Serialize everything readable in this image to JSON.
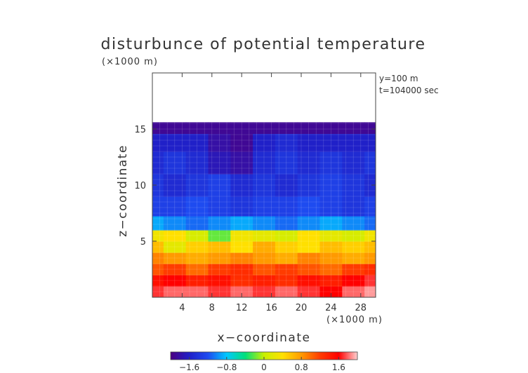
{
  "chart_data": {
    "type": "heatmap",
    "title": "disturbunce of potential temperature",
    "xlabel": "x−coordinate",
    "ylabel": "z−coordinate",
    "x_unit": "(×1000 m)",
    "y_unit": "(×1000 m)",
    "annotations": [
      "y=100 m",
      "t=104000 sec"
    ],
    "xlim": [
      0,
      30
    ],
    "ylim": [
      0,
      20
    ],
    "x_ticks": [
      4,
      8,
      12,
      16,
      20,
      24,
      28
    ],
    "x_tick_labels": [
      "4",
      "8",
      "12",
      "16",
      "20",
      "24",
      "28"
    ],
    "y_ticks": [
      5,
      10,
      15
    ],
    "y_tick_labels": [
      "5",
      "10",
      "15"
    ],
    "colorbar": {
      "range": [
        -2.0,
        2.0
      ],
      "ticks": [
        -1.6,
        -0.8,
        0,
        0.8,
        1.6
      ],
      "tick_labels": [
        "−1.6",
        "−0.8",
        "0",
        "0.8",
        "1.6"
      ],
      "colormap": [
        "#4b0082",
        "#2020c8",
        "#1e4bf0",
        "#00c8ff",
        "#00e07a",
        "#c8f000",
        "#ffe000",
        "#ff9a00",
        "#ff3c00",
        "#ff0000",
        "#ffd0d0"
      ]
    },
    "field_x": [
      0,
      3,
      6,
      9,
      12,
      15,
      18,
      21,
      24,
      27,
      30
    ],
    "field_z": [
      0.5,
      1.5,
      2.5,
      3.5,
      4.5,
      5.5,
      6.5,
      8,
      10,
      12,
      14,
      15.2
    ],
    "field_values": [
      [
        1.7,
        1.8,
        1.8,
        1.7,
        1.8,
        1.7,
        1.8,
        1.7,
        1.6,
        1.8,
        1.9
      ],
      [
        1.5,
        1.6,
        1.4,
        1.5,
        1.3,
        1.4,
        1.3,
        1.5,
        1.4,
        1.6,
        1.7
      ],
      [
        1.1,
        1.2,
        1.0,
        1.2,
        1.3,
        1.1,
        1.2,
        1.1,
        1.0,
        1.2,
        1.3
      ],
      [
        0.9,
        0.8,
        0.7,
        0.8,
        0.9,
        0.8,
        0.7,
        0.9,
        0.8,
        0.7,
        0.8
      ],
      [
        0.6,
        0.2,
        0.5,
        0.6,
        0.4,
        0.7,
        0.5,
        0.4,
        0.6,
        0.5,
        0.6
      ],
      [
        0.3,
        0.4,
        0.1,
        -0.2,
        0.3,
        0.2,
        0.1,
        0.4,
        0.2,
        0.1,
        0.3
      ],
      [
        -0.9,
        -1.0,
        -1.1,
        -1.0,
        -0.9,
        -1.0,
        -1.1,
        -1.0,
        -0.9,
        -1.0,
        -1.1
      ],
      [
        -1.3,
        -1.3,
        -1.2,
        -1.3,
        -1.4,
        -1.3,
        -1.3,
        -1.2,
        -1.3,
        -1.4,
        -1.3
      ],
      [
        -1.4,
        -1.5,
        -1.4,
        -1.3,
        -1.5,
        -1.4,
        -1.5,
        -1.4,
        -1.3,
        -1.4,
        -1.5
      ],
      [
        -1.5,
        -1.4,
        -1.5,
        -1.7,
        -1.8,
        -1.5,
        -1.4,
        -1.5,
        -1.4,
        -1.5,
        -1.4
      ],
      [
        -1.6,
        -1.6,
        -1.6,
        -1.8,
        -1.9,
        -1.6,
        -1.5,
        -1.6,
        -1.6,
        -1.6,
        -1.6
      ],
      [
        -1.9,
        -1.9,
        -1.9,
        -1.9,
        -1.9,
        -1.9,
        -1.9,
        -1.9,
        -1.9,
        -1.9,
        -1.9
      ]
    ]
  }
}
